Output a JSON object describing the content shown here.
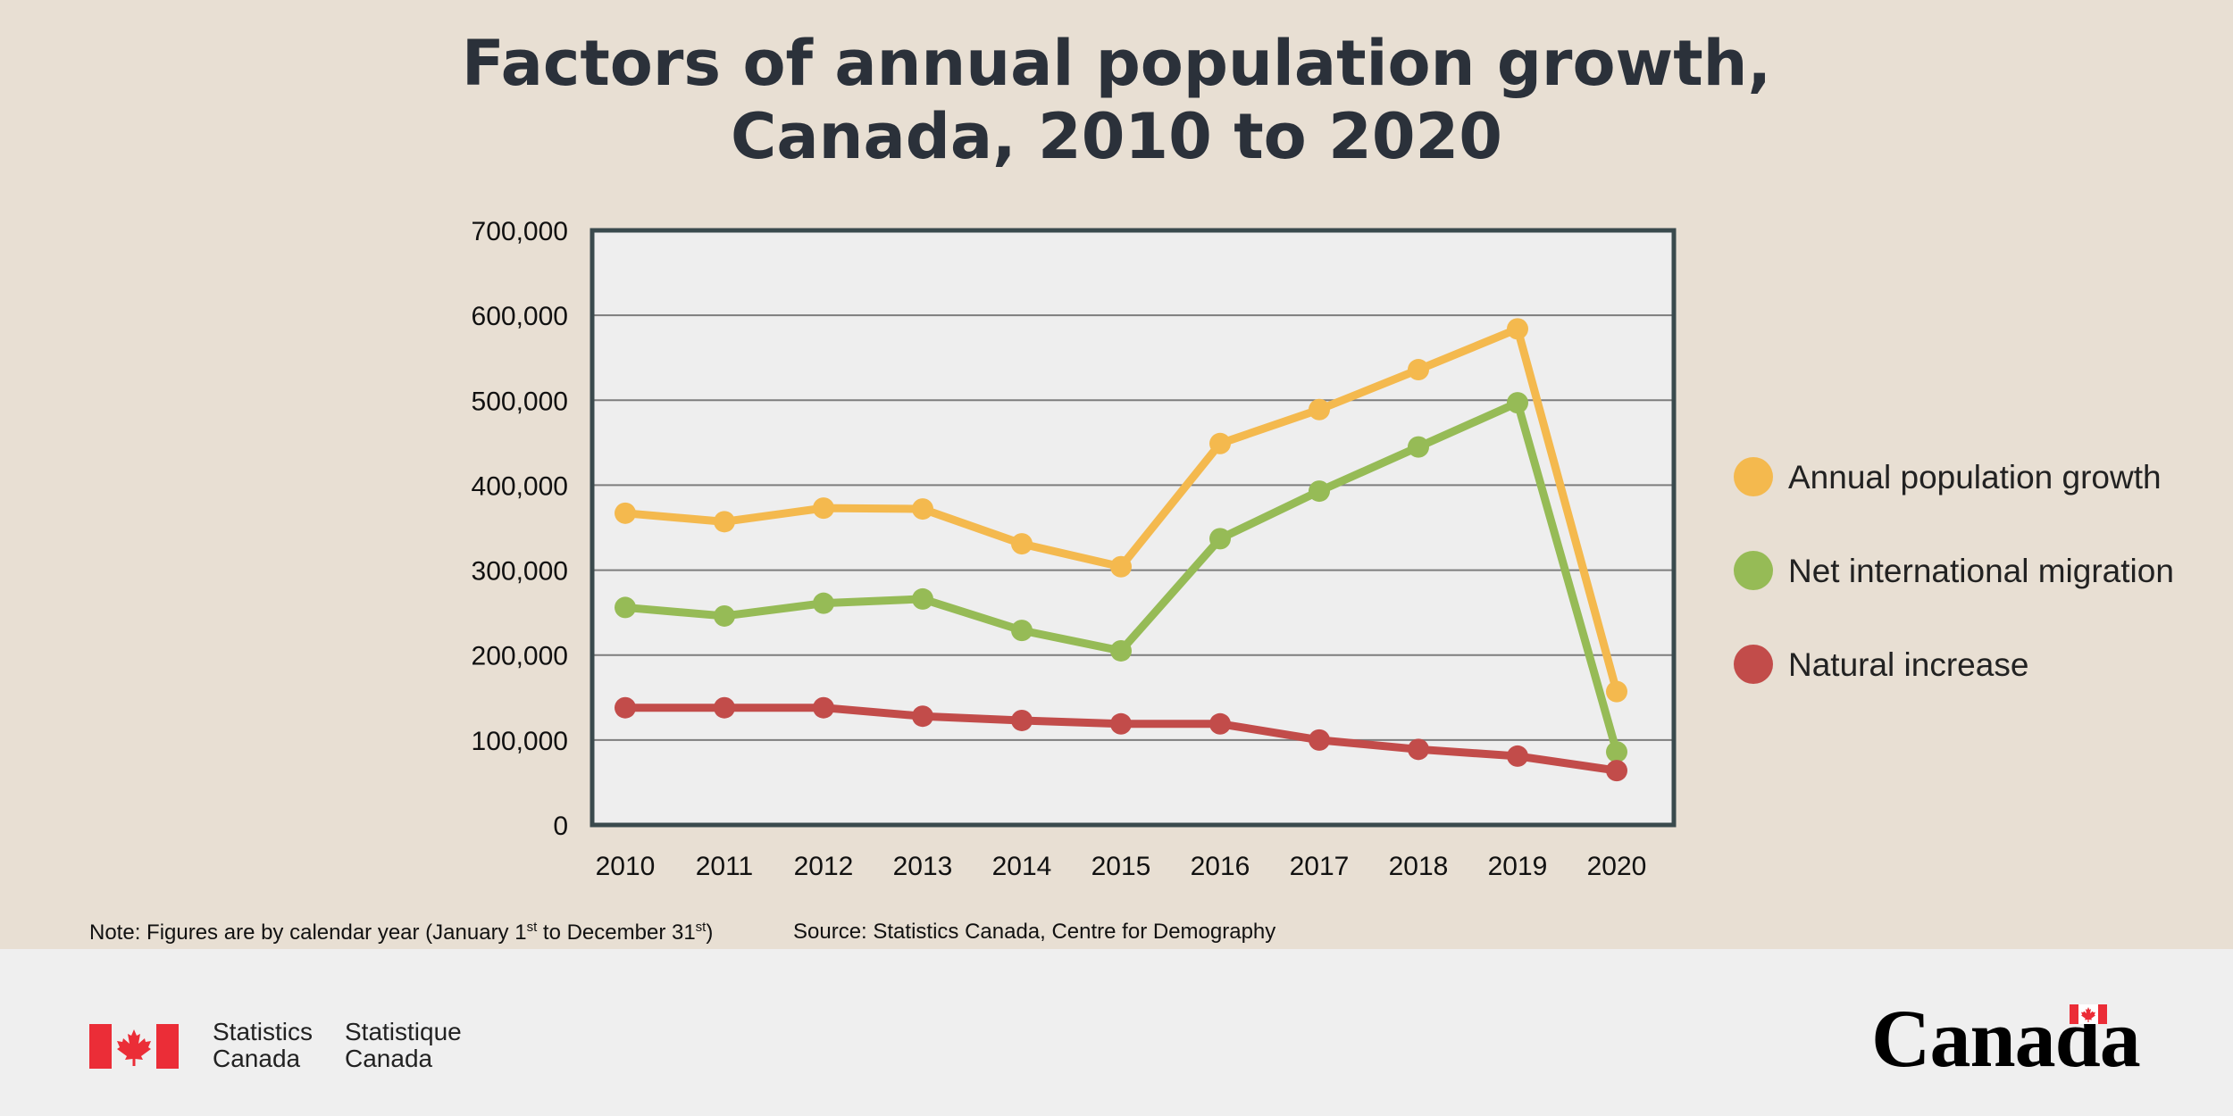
{
  "title": {
    "line1": "Factors of annual population growth,",
    "line2": "Canada, 2010 to 2020"
  },
  "chart_data": {
    "type": "line",
    "title": "Factors of annual population growth, Canada, 2010 to 2020",
    "xlabel": "",
    "ylabel": "",
    "grid": true,
    "legend_position": "right",
    "ylim": [
      0,
      700000
    ],
    "y_ticks": [
      0,
      100000,
      200000,
      300000,
      400000,
      500000,
      600000,
      700000
    ],
    "y_tick_labels": [
      "0",
      "100,000",
      "200,000",
      "300,000",
      "400,000",
      "500,000",
      "600,000",
      "700,000"
    ],
    "categories": [
      "2010",
      "2011",
      "2012",
      "2013",
      "2014",
      "2015",
      "2016",
      "2017",
      "2018",
      "2019",
      "2020"
    ],
    "series": [
      {
        "name": "Annual population growth",
        "color": "#f4b94e",
        "values": [
          367000,
          357000,
          373000,
          372000,
          331000,
          304000,
          449000,
          489000,
          536000,
          584000,
          157000
        ]
      },
      {
        "name": "Net international migration",
        "color": "#96bb56",
        "values": [
          256000,
          246000,
          261000,
          266000,
          229000,
          205000,
          337000,
          393000,
          445000,
          497000,
          86000
        ]
      },
      {
        "name": "Natural increase",
        "color": "#c24c4a",
        "values": [
          138000,
          138000,
          138000,
          128000,
          123000,
          119000,
          119000,
          100000,
          89000,
          81000,
          64000
        ]
      }
    ]
  },
  "note": {
    "prefix": "Note: Figures are by calendar year (January 1",
    "sup1": "st",
    "middle": " to December 31",
    "sup2": "st",
    "suffix": ")"
  },
  "source": "Source: Statistics Canada, Centre for Demography",
  "footer": {
    "signature_en": [
      "Statistics",
      "Canada"
    ],
    "signature_fr": [
      "Statistique",
      "Canada"
    ],
    "wordmark": "Canada"
  },
  "colors": {
    "background": "#e8dfd3",
    "footer": "#efefef",
    "plot_bg": "#eeeeee",
    "frame": "#3a4a4d",
    "title": "#2b313a",
    "flag_red": "#eb2d37"
  }
}
